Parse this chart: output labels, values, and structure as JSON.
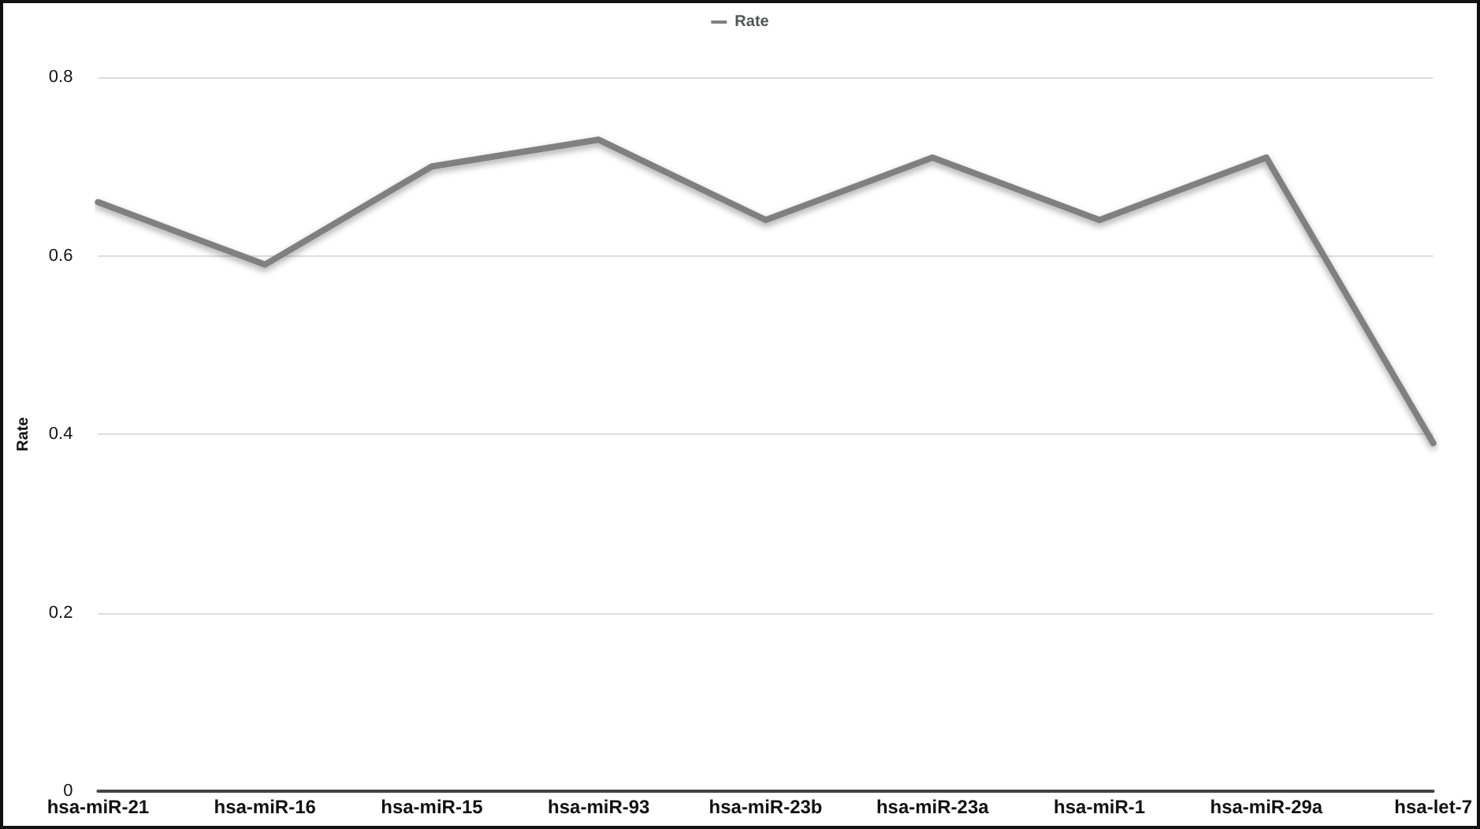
{
  "chart_data": {
    "type": "line",
    "ylabel": "Rate",
    "categories": [
      "hsa-miR-21",
      "hsa-miR-16",
      "hsa-miR-15",
      "hsa-miR-93",
      "hsa-miR-23b",
      "hsa-miR-23a",
      "hsa-miR-1",
      "hsa-miR-29a",
      "hsa-let-7"
    ],
    "series": [
      {
        "name": "Rate",
        "color": "#808080",
        "values": [
          0.66,
          0.59,
          0.7,
          0.73,
          0.64,
          0.71,
          0.64,
          0.71,
          0.39
        ]
      }
    ],
    "ylim": [
      0,
      0.8
    ],
    "yticks": [
      0,
      0.2,
      0.4,
      0.6,
      0.8
    ],
    "grid": "y",
    "legend": "top",
    "marker": "none",
    "line_style": "solid"
  }
}
